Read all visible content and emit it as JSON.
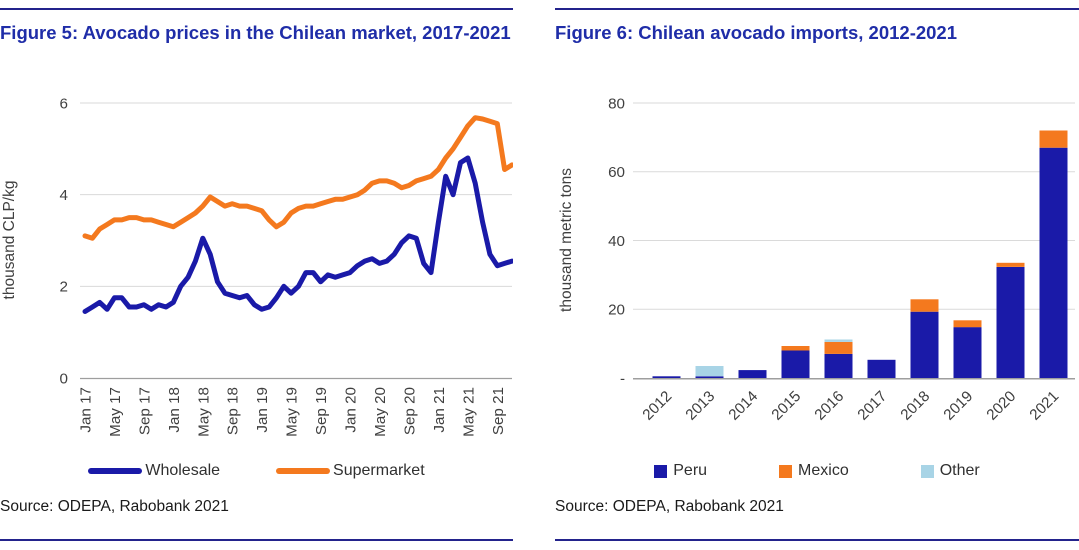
{
  "colors": {
    "rule_navy": "#23238C",
    "title_navy": "#1F2DA8",
    "grid": "#DADADA",
    "axis": "#9E9E9E",
    "tick_text": "#3F3F3F",
    "legend_text": "#303030",
    "source_text": "#1A1A1A"
  },
  "figures": [
    {
      "title": "Figure 5: Avocado prices in the Chilean market, 2017-2021",
      "source": "Source: ODEPA, Rabobank 2021",
      "chart_data": {
        "type": "line",
        "title": "Avocado prices in the Chilean market, 2017-2021",
        "ylabel": "thousand CLP/kg",
        "ylim": [
          0,
          6
        ],
        "yticks": [
          0,
          2,
          4,
          6
        ],
        "x_start": "Jan 2017",
        "x_frequency": "monthly",
        "x_tick_labels": [
          "Jan 17",
          "May 17",
          "Sep 17",
          "Jan 18",
          "May 18",
          "Sep 18",
          "Jan 19",
          "May 19",
          "Sep 19",
          "Jan 20",
          "May 20",
          "Sep 20",
          "Jan 21",
          "May 21",
          "Sep 21"
        ],
        "x_tick_every_n_months": 4,
        "grid": "horizontal",
        "legend_position": "bottom",
        "series": [
          {
            "name": "Wholesale",
            "color": "#1A1AA8",
            "values": [
              1.45,
              1.55,
              1.65,
              1.5,
              1.75,
              1.75,
              1.55,
              1.55,
              1.6,
              1.5,
              1.6,
              1.55,
              1.65,
              2.0,
              2.2,
              2.55,
              3.05,
              2.7,
              2.1,
              1.85,
              1.8,
              1.75,
              1.8,
              1.6,
              1.5,
              1.55,
              1.75,
              2.0,
              1.85,
              2.0,
              2.3,
              2.3,
              2.1,
              2.25,
              2.2,
              2.25,
              2.3,
              2.45,
              2.55,
              2.6,
              2.5,
              2.55,
              2.7,
              2.95,
              3.1,
              3.05,
              2.5,
              2.3,
              3.4,
              4.4,
              4.0,
              4.7,
              4.8,
              4.25,
              3.4,
              2.7,
              2.45,
              2.5,
              2.55
            ]
          },
          {
            "name": "Supermarket",
            "color": "#F4791E",
            "values": [
              3.1,
              3.05,
              3.25,
              3.35,
              3.45,
              3.45,
              3.5,
              3.5,
              3.45,
              3.45,
              3.4,
              3.35,
              3.3,
              3.4,
              3.5,
              3.6,
              3.75,
              3.95,
              3.85,
              3.75,
              3.8,
              3.75,
              3.75,
              3.7,
              3.65,
              3.45,
              3.3,
              3.4,
              3.6,
              3.7,
              3.75,
              3.75,
              3.8,
              3.85,
              3.9,
              3.9,
              3.95,
              4.0,
              4.1,
              4.25,
              4.3,
              4.3,
              4.25,
              4.15,
              4.2,
              4.3,
              4.35,
              4.4,
              4.55,
              4.8,
              5.0,
              5.25,
              5.5,
              5.68,
              5.65,
              5.6,
              5.55,
              4.55,
              4.65
            ]
          }
        ]
      }
    },
    {
      "title": "Figure 6: Chilean avocado imports, 2012-2021",
      "source": "Source: ODEPA, Rabobank 2021",
      "chart_data": {
        "type": "bar",
        "subtype": "stacked",
        "title": "Chilean avocado imports, 2012-2021",
        "ylabel": "thousand metric tons",
        "ylim": [
          0,
          80
        ],
        "yticks": [
          80,
          60,
          40,
          20,
          0
        ],
        "ytick_zero_label": "-",
        "grid": "horizontal",
        "legend_position": "bottom",
        "categories": [
          "2012",
          "2013",
          "2014",
          "2015",
          "2016",
          "2017",
          "2018",
          "2019",
          "2020",
          "2021"
        ],
        "series": [
          {
            "name": "Peru",
            "color": "#1A1AA8",
            "values": [
              0.5,
              0.5,
              2.3,
              8.0,
              7.0,
              5.3,
              19.3,
              14.8,
              32.3,
              67.0
            ]
          },
          {
            "name": "Mexico",
            "color": "#F4791E",
            "values": [
              0,
              0,
              0,
              1.3,
              3.5,
              0,
              3.6,
              2.0,
              1.2,
              5.0
            ]
          },
          {
            "name": "Other",
            "color": "#A8D4E6",
            "values": [
              0,
              3.0,
              0,
              0,
              0.7,
              0,
              0,
              0,
              0,
              0
            ]
          }
        ]
      }
    }
  ]
}
